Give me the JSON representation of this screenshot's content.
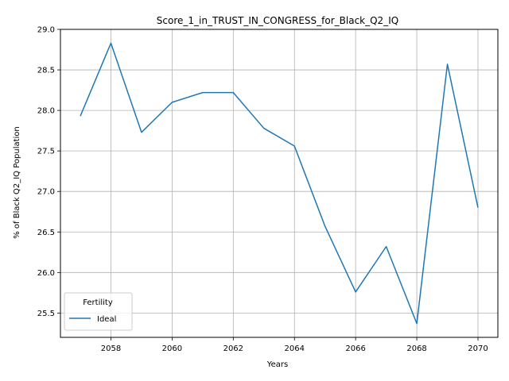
{
  "chart_data": {
    "type": "line",
    "title": "Score_1_in_TRUST_IN_CONGRESS_for_Black_Q2_IQ",
    "xlabel": "Years",
    "ylabel": "% of Black Q2_IQ Population",
    "xlim": [
      2056.35,
      2070.65
    ],
    "ylim": [
      25.2,
      29.0
    ],
    "xticks": [
      2058,
      2060,
      2062,
      2064,
      2066,
      2068,
      2070
    ],
    "yticks": [
      25.5,
      26.0,
      26.5,
      27.0,
      27.5,
      28.0,
      28.5,
      29.0
    ],
    "grid": true,
    "legend": {
      "title": "Fertility",
      "placement": "lower-left"
    },
    "series": [
      {
        "name": "Ideal",
        "color": "#1f77b4",
        "x": [
          2057,
          2058,
          2059,
          2060,
          2061,
          2062,
          2063,
          2064,
          2065,
          2066,
          2067,
          2068,
          2069,
          2070
        ],
        "y": [
          27.93,
          28.83,
          27.73,
          28.1,
          28.22,
          28.22,
          27.78,
          27.56,
          26.57,
          25.76,
          26.32,
          25.37,
          28.57,
          26.8
        ]
      }
    ]
  }
}
